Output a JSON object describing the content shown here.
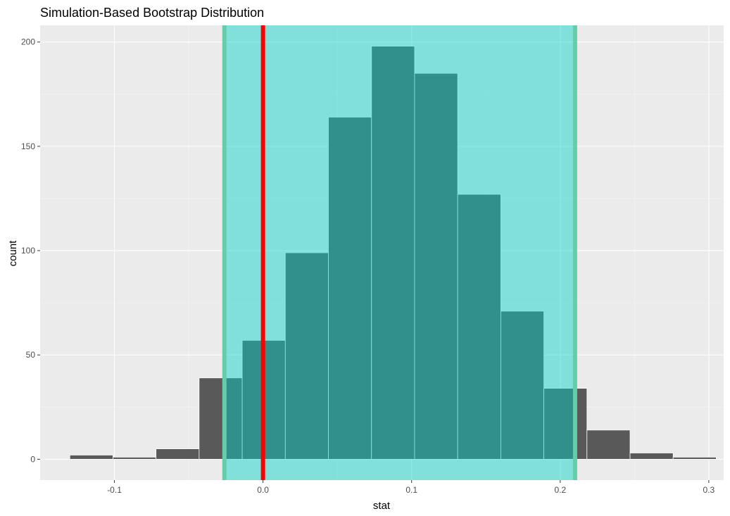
{
  "chart_data": {
    "type": "bar",
    "title": "Simulation-Based Bootstrap Distribution",
    "xlabel": "stat",
    "ylabel": "count",
    "xlim": [
      -0.15,
      0.31
    ],
    "ylim": [
      -10,
      208
    ],
    "x_ticks": [
      -0.1,
      0.0,
      0.1,
      0.2,
      0.3
    ],
    "x_tick_labels": [
      "-0.1",
      "0.0",
      "0.1",
      "0.2",
      "0.3"
    ],
    "y_ticks": [
      0,
      50,
      100,
      150,
      200
    ],
    "y_tick_labels": [
      "0",
      "50",
      "100",
      "150",
      "200"
    ],
    "bins": [
      {
        "x_start": -0.13,
        "x_end": -0.101,
        "count": 2
      },
      {
        "x_start": -0.101,
        "x_end": -0.072,
        "count": 1
      },
      {
        "x_start": -0.072,
        "x_end": -0.043,
        "count": 5
      },
      {
        "x_start": -0.043,
        "x_end": -0.014,
        "count": 39
      },
      {
        "x_start": -0.014,
        "x_end": 0.015,
        "count": 57
      },
      {
        "x_start": 0.015,
        "x_end": 0.044,
        "count": 99
      },
      {
        "x_start": 0.044,
        "x_end": 0.073,
        "count": 164
      },
      {
        "x_start": 0.073,
        "x_end": 0.102,
        "count": 198
      },
      {
        "x_start": 0.102,
        "x_end": 0.131,
        "count": 185
      },
      {
        "x_start": 0.131,
        "x_end": 0.16,
        "count": 127
      },
      {
        "x_start": 0.16,
        "x_end": 0.189,
        "count": 71
      },
      {
        "x_start": 0.189,
        "x_end": 0.218,
        "count": 34
      },
      {
        "x_start": 0.218,
        "x_end": 0.247,
        "count": 14
      },
      {
        "x_start": 0.247,
        "x_end": 0.276,
        "count": 3
      },
      {
        "x_start": 0.276,
        "x_end": 0.305,
        "count": 1
      }
    ],
    "confidence_interval": [
      -0.026,
      0.21
    ],
    "observed_stat": 0.0,
    "grid": true,
    "legend": "none",
    "colors": {
      "panel_background": "#ebebeb",
      "grid_major": "#ffffff",
      "grid_minor": "#f5f5f5",
      "bar_fill": "#595959",
      "bar_outline": "#ffffff",
      "ci_shade": "#00d2c6",
      "ci_shade_opacity": 0.45,
      "ci_endpoint": "#66cdaa",
      "observed_line": "#ff0000"
    }
  }
}
